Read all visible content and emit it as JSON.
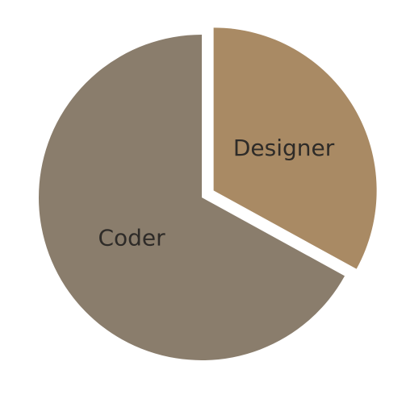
{
  "chart_data": {
    "type": "pie",
    "categories": [
      "Designer",
      "Coder"
    ],
    "values": [
      33,
      67
    ],
    "colors": [
      "#a98a64",
      "#8a7d6c"
    ],
    "exploded": [
      true,
      false
    ]
  }
}
